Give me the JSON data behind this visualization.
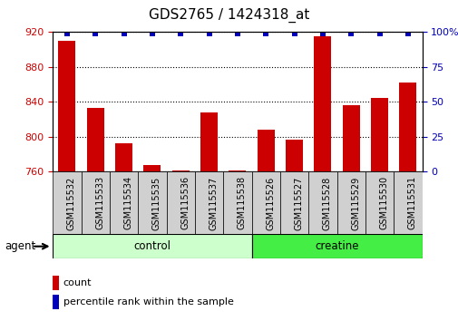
{
  "title": "GDS2765 / 1424318_at",
  "samples": [
    "GSM115532",
    "GSM115533",
    "GSM115534",
    "GSM115535",
    "GSM115536",
    "GSM115537",
    "GSM115538",
    "GSM115526",
    "GSM115527",
    "GSM115528",
    "GSM115529",
    "GSM115530",
    "GSM115531"
  ],
  "counts": [
    910,
    833,
    793,
    768,
    761,
    828,
    761,
    808,
    797,
    915,
    836,
    845,
    862
  ],
  "percentiles": [
    99,
    99,
    99,
    99,
    99,
    99,
    99,
    99,
    99,
    99,
    99,
    99,
    99
  ],
  "groups": [
    {
      "label": "control",
      "start": 0,
      "end": 7,
      "color": "#ccffcc"
    },
    {
      "label": "creatine",
      "start": 7,
      "end": 13,
      "color": "#44ee44"
    }
  ],
  "ylim_left": [
    760,
    920
  ],
  "ylim_right": [
    0,
    100
  ],
  "yticks_left": [
    760,
    800,
    840,
    880,
    920
  ],
  "yticks_right": [
    0,
    25,
    50,
    75,
    100
  ],
  "bar_color": "#cc0000",
  "dot_color": "#0000bb",
  "bar_width": 0.6,
  "background_color": "#ffffff",
  "plot_bg_color": "#ffffff",
  "agent_label": "agent",
  "legend_count_label": "count",
  "legend_pct_label": "percentile rank within the sample",
  "title_fontsize": 11,
  "axis_label_color_left": "#cc0000",
  "axis_label_color_right": "#0000bb",
  "tick_label_bg": "#d0d0d0"
}
